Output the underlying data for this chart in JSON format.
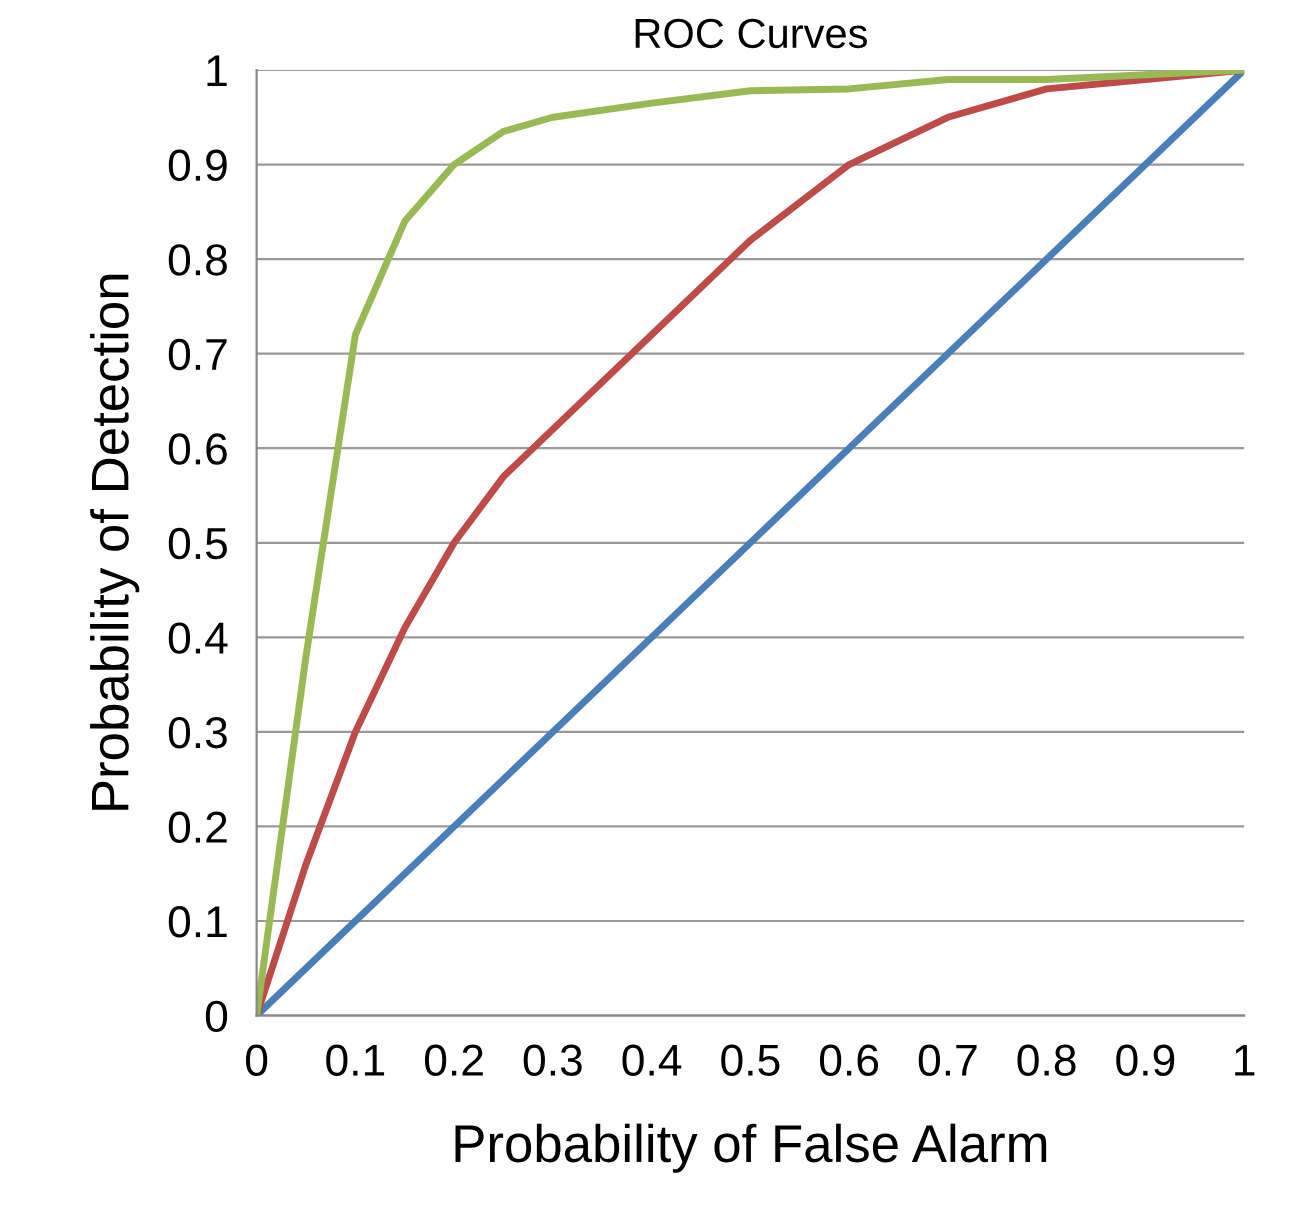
{
  "chart_data": {
    "type": "line",
    "title": "ROC Curves",
    "xlabel": "Probability of False Alarm",
    "ylabel": "Probability of Detection",
    "xlim": [
      0,
      1
    ],
    "ylim": [
      0,
      1
    ],
    "xticks": [
      0,
      0.1,
      0.2,
      0.3,
      0.4,
      0.5,
      0.6,
      0.7,
      0.8,
      0.9,
      1
    ],
    "yticks": [
      0,
      0.1,
      0.2,
      0.3,
      0.4,
      0.5,
      0.6,
      0.7,
      0.8,
      0.9,
      1
    ],
    "grid": "y",
    "legend": false,
    "marker": "none",
    "line_style": "solid",
    "series": [
      {
        "color": "#4a7ebb",
        "x": [
          0,
          1
        ],
        "values": [
          0,
          1
        ]
      },
      {
        "color": "#be4b48",
        "x": [
          0,
          0.05,
          0.1,
          0.15,
          0.2,
          0.25,
          0.3,
          0.4,
          0.5,
          0.6,
          0.7,
          0.8,
          0.9,
          1
        ],
        "values": [
          0,
          0.16,
          0.3,
          0.41,
          0.5,
          0.57,
          0.62,
          0.72,
          0.82,
          0.9,
          0.95,
          0.98,
          0.99,
          1
        ]
      },
      {
        "color": "#98b954",
        "x": [
          0,
          0.05,
          0.1,
          0.15,
          0.2,
          0.25,
          0.3,
          0.4,
          0.5,
          0.6,
          0.7,
          0.8,
          0.9,
          1
        ],
        "values": [
          0,
          0.38,
          0.72,
          0.84,
          0.9,
          0.935,
          0.95,
          0.965,
          0.978,
          0.98,
          0.99,
          0.99,
          0.995,
          1
        ]
      }
    ]
  }
}
